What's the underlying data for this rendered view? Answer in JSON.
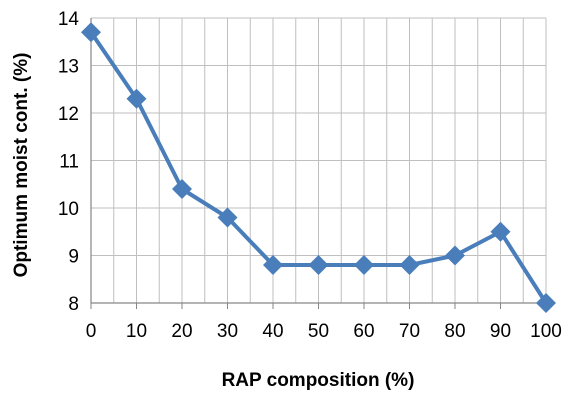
{
  "chart_data": {
    "type": "line",
    "title": "",
    "xlabel": "RAP composition (%)",
    "ylabel": "Optimum moist cont. (%)",
    "x": [
      0,
      10,
      20,
      30,
      40,
      50,
      60,
      70,
      80,
      90,
      100
    ],
    "series": [
      {
        "values": [
          13.7,
          12.3,
          10.4,
          9.8,
          8.8,
          8.8,
          8.8,
          8.8,
          9.0,
          9.5,
          8.0
        ]
      }
    ],
    "xlim": [
      0,
      100
    ],
    "ylim": [
      8,
      14
    ],
    "x_ticks": [
      "0",
      "10",
      "20",
      "30",
      "40",
      "50",
      "60",
      "70",
      "80",
      "90",
      "100"
    ],
    "y_ticks": [
      "8",
      "9",
      "10",
      "11",
      "12",
      "13",
      "14"
    ],
    "x_minor_step": 5,
    "grid": true,
    "legend": "none",
    "marker": "diamond",
    "colors": {
      "series": "#4a7ebb",
      "grid": "#bfbfbf",
      "axis": "#868686"
    }
  }
}
